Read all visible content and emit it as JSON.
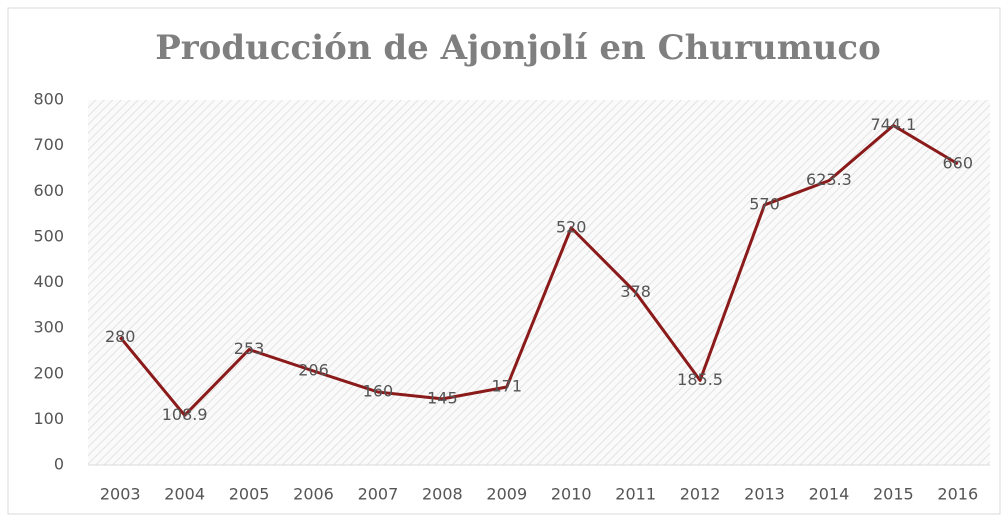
{
  "chart_data": {
    "type": "line",
    "title": "Producción de Ajonjolí en Churumuco",
    "categories": [
      "2003",
      "2004",
      "2005",
      "2006",
      "2007",
      "2008",
      "2009",
      "2010",
      "2011",
      "2012",
      "2013",
      "2014",
      "2015",
      "2016"
    ],
    "values": [
      280,
      108.9,
      253,
      206,
      160,
      145,
      171,
      520,
      378,
      185.5,
      570,
      623.3,
      744.1,
      660
    ],
    "color": "#8b1a1a",
    "ylim": [
      0,
      800
    ],
    "yticks": [
      0,
      100,
      200,
      300,
      400,
      500,
      600,
      700,
      800
    ],
    "grid": false
  }
}
